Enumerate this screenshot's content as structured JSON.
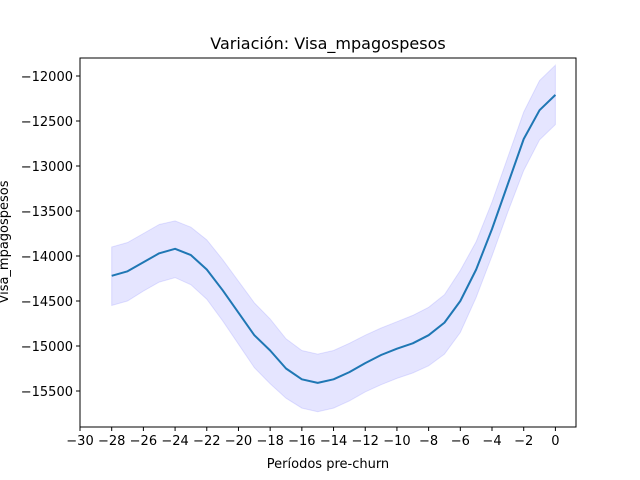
{
  "chart_data": {
    "type": "line",
    "title": "Variación: Visa_mpagospesos",
    "xlabel": "Períodos pre-churn",
    "ylabel": "Visa_mpagospesos",
    "xlim": [
      -30,
      1.3
    ],
    "ylim": [
      -15900,
      -11800
    ],
    "x_ticks": [
      -30,
      -28,
      -26,
      -24,
      -22,
      -20,
      -18,
      -16,
      -14,
      -12,
      -10,
      -8,
      -6,
      -4,
      -2,
      0
    ],
    "x_tick_labels": [
      "−30",
      "−28",
      "−26",
      "−24",
      "−22",
      "−20",
      "−18",
      "−16",
      "−14",
      "−12",
      "−10",
      "−8",
      "−6",
      "−4",
      "−2",
      "0"
    ],
    "y_ticks": [
      -15500,
      -15000,
      -14500,
      -14000,
      -13500,
      -13000,
      -12500,
      -12000
    ],
    "y_tick_labels": [
      "−15500",
      "−15000",
      "−14500",
      "−14000",
      "−13500",
      "−13000",
      "−12500",
      "−12000"
    ],
    "grid": false,
    "series": [
      {
        "color": "#1f77b4",
        "band_color": "#0000ff",
        "x": [
          -28,
          -27,
          -26,
          -25,
          -24,
          -23,
          -22,
          -21,
          -20,
          -19,
          -18,
          -17,
          -16,
          -15,
          -14,
          -13,
          -12,
          -11,
          -10,
          -9,
          -8,
          -7,
          -6,
          -5,
          -4,
          -3,
          -2,
          -1,
          0
        ],
        "values": [
          -14220,
          -14170,
          -14070,
          -13970,
          -13920,
          -13990,
          -14150,
          -14380,
          -14630,
          -14880,
          -15050,
          -15250,
          -15370,
          -15410,
          -15370,
          -15290,
          -15190,
          -15100,
          -15030,
          -14970,
          -14880,
          -14740,
          -14500,
          -14150,
          -13700,
          -13200,
          -12700,
          -12380,
          -12210
        ],
        "lower": [
          -14550,
          -14500,
          -14390,
          -14290,
          -14240,
          -14320,
          -14480,
          -14720,
          -14980,
          -15240,
          -15420,
          -15580,
          -15690,
          -15730,
          -15690,
          -15610,
          -15510,
          -15430,
          -15360,
          -15300,
          -15220,
          -15090,
          -14850,
          -14460,
          -14000,
          -13510,
          -13050,
          -12710,
          -12540
        ],
        "upper": [
          -13900,
          -13850,
          -13750,
          -13650,
          -13610,
          -13680,
          -13820,
          -14040,
          -14280,
          -14520,
          -14700,
          -14920,
          -15050,
          -15090,
          -15050,
          -14970,
          -14880,
          -14800,
          -14730,
          -14660,
          -14570,
          -14430,
          -14160,
          -13840,
          -13400,
          -12900,
          -12400,
          -12050,
          -11880
        ]
      }
    ]
  }
}
